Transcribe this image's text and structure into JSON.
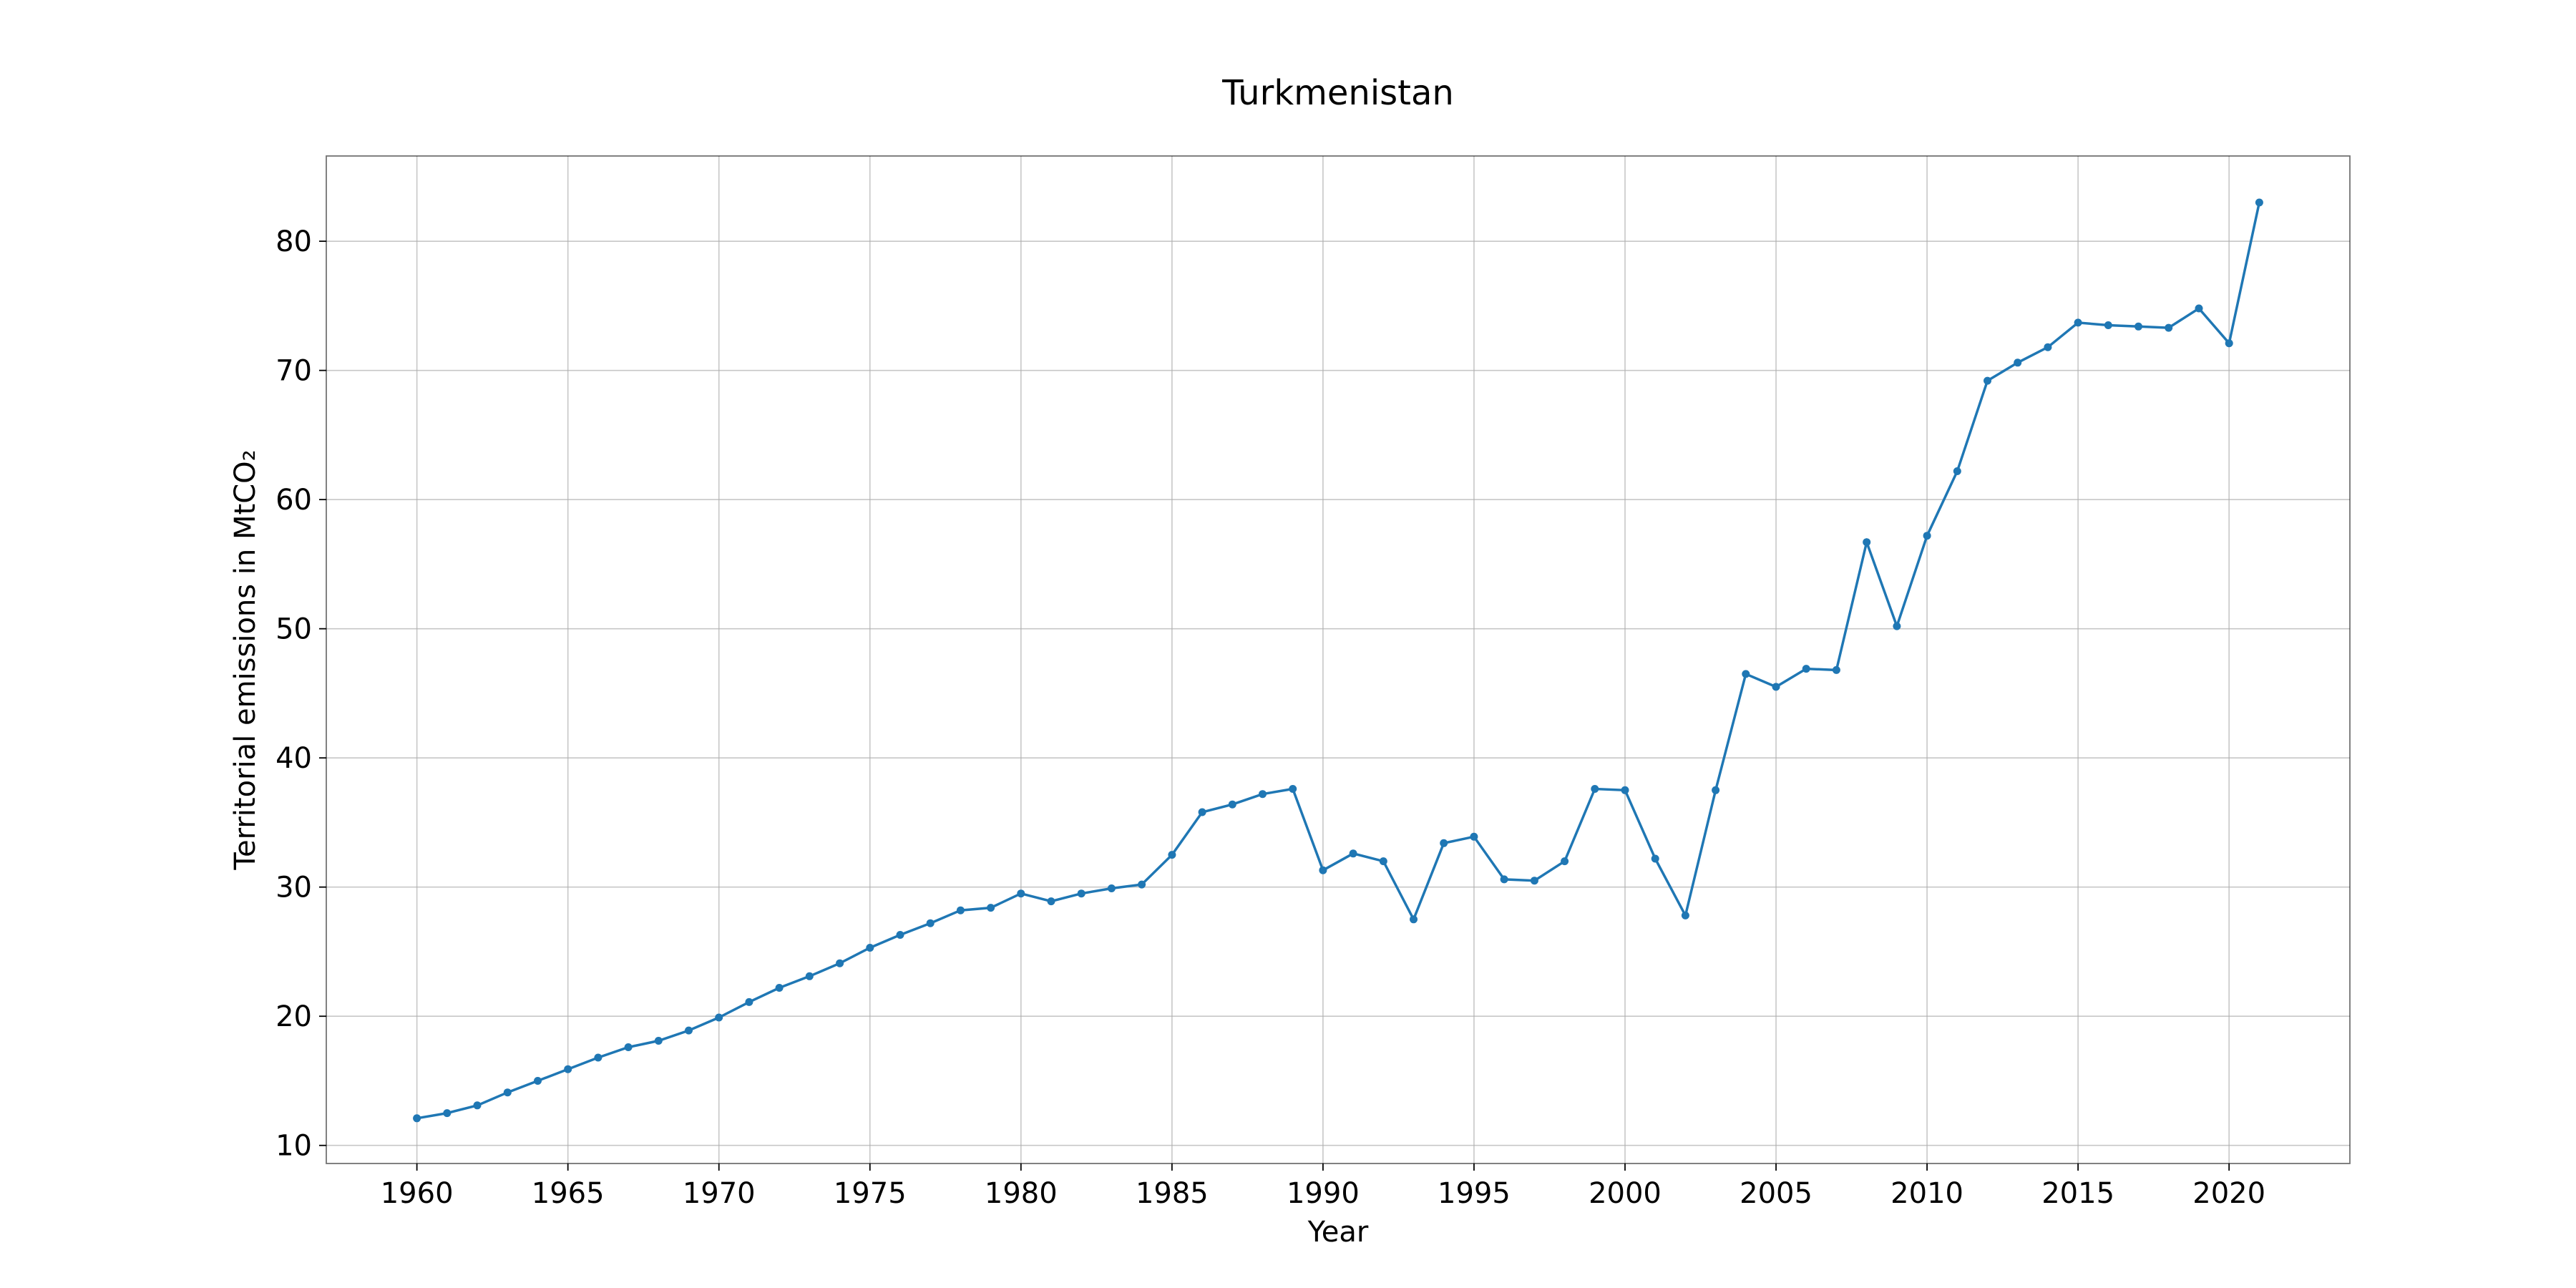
{
  "chart_data": {
    "type": "line",
    "title": "Turkmenistan",
    "xlabel": "Year",
    "ylabel": "Territorial emissions in MtCO₂",
    "xlim": [
      1957,
      2024
    ],
    "ylim": [
      8.6,
      86.6
    ],
    "xticks": [
      1960,
      1965,
      1970,
      1975,
      1980,
      1985,
      1990,
      1995,
      2000,
      2005,
      2010,
      2015,
      2020
    ],
    "yticks": [
      10,
      20,
      30,
      40,
      50,
      60,
      70,
      80
    ],
    "grid": true,
    "legend": "none",
    "colors": {
      "series": "#1f77b4"
    },
    "series": [
      {
        "x": [
          1960,
          1961,
          1962,
          1963,
          1964,
          1965,
          1966,
          1967,
          1968,
          1969,
          1970,
          1971,
          1972,
          1973,
          1974,
          1975,
          1976,
          1977,
          1978,
          1979,
          1980,
          1981,
          1982,
          1983,
          1984,
          1985,
          1986,
          1987,
          1988,
          1989,
          1990,
          1991,
          1992,
          1993,
          1994,
          1995,
          1996,
          1997,
          1998,
          1999,
          2000,
          2001,
          2002,
          2003,
          2004,
          2005,
          2006,
          2007,
          2008,
          2009,
          2010,
          2011,
          2012,
          2013,
          2014,
          2015,
          2016,
          2017,
          2018,
          2019,
          2020,
          2021
        ],
        "values": [
          12.1,
          12.5,
          13.1,
          14.1,
          15.0,
          15.9,
          16.8,
          17.6,
          18.1,
          18.9,
          19.9,
          21.1,
          22.2,
          23.1,
          24.1,
          25.3,
          26.3,
          27.2,
          28.2,
          28.4,
          29.5,
          28.9,
          29.5,
          29.9,
          30.2,
          32.5,
          35.8,
          36.4,
          37.2,
          37.6,
          31.3,
          32.6,
          32.0,
          27.5,
          33.4,
          33.9,
          30.6,
          30.5,
          32.0,
          37.6,
          37.5,
          32.2,
          27.8,
          37.5,
          46.5,
          45.5,
          46.9,
          46.8,
          56.7,
          50.2,
          57.2,
          62.2,
          69.2,
          70.6,
          71.8,
          73.7,
          73.5,
          73.4,
          73.3,
          74.8,
          72.1,
          83.0
        ]
      }
    ]
  }
}
